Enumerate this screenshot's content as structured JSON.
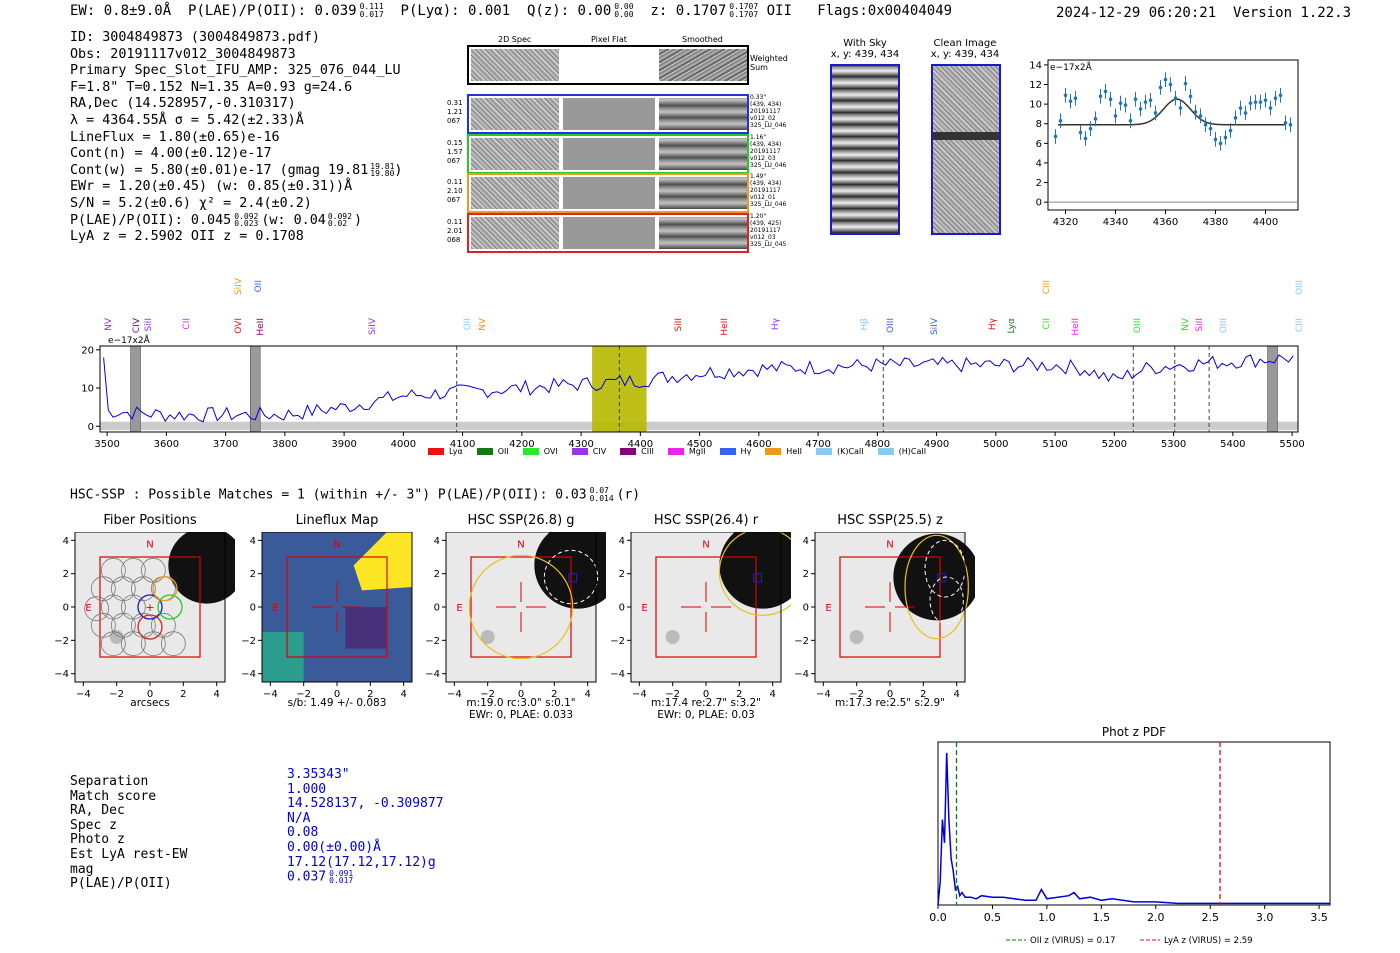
{
  "header": {
    "ew": "EW: 0.8±9.0Å",
    "plae": "P(LAE)/P(OII): 0.039",
    "plae_hi": "0.111",
    "plae_lo": "0.017",
    "plya": "P(Lyα): 0.001",
    "qz": "Q(z): 0.00",
    "qz_hi": "0.00",
    "qz_lo": "0.00",
    "z": "z: 0.1707",
    "z_hi": "0.1707",
    "z_lo": "0.1707",
    "z_line": "OII",
    "flags": "Flags:0x00404049",
    "timestamp": "2024-12-29 06:20:21",
    "version": "Version 1.22.3"
  },
  "info": {
    "id": "ID: 3004849873 (3004849873.pdf)",
    "obs": "Obs: 20191117v012_3004849873",
    "primary": "Primary Spec_Slot_IFU_AMP: 325_076_044_LU",
    "f_line": "F=1.8\"  T=0.152  N=1.35  A=0.93  g=24.6",
    "radec": "RA,Dec (14.528957,-0.310317)",
    "lambda": "λ = 4364.55Å   σ = 5.42(±2.33)Å",
    "lineflux": "LineFlux = 1.80(±0.65)e-16",
    "contn": "Cont(n) = 4.00(±0.12)e-17",
    "contw": "Cont(w) = 5.80(±0.01)e-17 (gmag 19.81",
    "contw_hi": "19.81",
    "contw_lo": "19.80",
    "contw_close": ")",
    "ewr": "EWr = 1.20(±0.45)  (w: 0.85(±0.31))Å",
    "sn": "S/N = 5.2(±0.6)  χ² = 2.4(±0.2)",
    "plae2": "P(LAE)/P(OII): 0.045",
    "plae2_hi": "0.092",
    "plae2_lo": "0.023",
    "plae2_w": "(w: 0.04",
    "plae2_w_hi": "0.092",
    "plae2_w_lo": "0.02",
    "plae2_close": ")",
    "lyaz": "LyA z = 2.5902  OII z = 0.1708"
  },
  "cutouts": {
    "col_2dspec": "2D Spec",
    "col_pixflat": "Pixel Flat",
    "col_smoothed": "Smoothed",
    "weighted_sum": "Weighted Sum",
    "rows": [
      {
        "left": [
          "0.31",
          "1.21",
          "067"
        ],
        "right": [
          "0.33\"",
          "(439, 434)",
          "20191117",
          "v012_02",
          "325_LU_046"
        ],
        "color": "#2233dd"
      },
      {
        "left": [
          "0.15",
          "1.57",
          "067"
        ],
        "right": [
          "1.16\"",
          "(439, 434)",
          "20191117",
          "v012_03",
          "325_LU_046"
        ],
        "color": "#22cc22"
      },
      {
        "left": [
          "0.11",
          "2.10",
          "067"
        ],
        "right": [
          "1.49\"",
          "(439, 434)",
          "20191117",
          "v012_01",
          "325_LU_046"
        ],
        "color": "#ee9922"
      },
      {
        "left": [
          "0.11",
          "2.01",
          "068"
        ],
        "right": [
          "1.20\"",
          "(439, 425)",
          "20191117",
          "v012_03",
          "325_LU_045"
        ],
        "color": "#dd2222"
      }
    ]
  },
  "stamps": {
    "with_sky": "With Sky",
    "with_sky_xy": "x, y: 439, 434",
    "clean": "Clean Image",
    "clean_xy": "x, y: 439, 434"
  },
  "line_ids": [
    "NV",
    "CIV",
    "SiII",
    "CII",
    "OVI",
    "HeII",
    "SiIV",
    "OII",
    "NV",
    "SiII",
    "HeII",
    "Hγ",
    "Hβ",
    "OIII",
    "SiIV",
    "Hγ",
    "Lyα",
    "CII",
    "HeII",
    "OIII",
    "NV",
    "SiII",
    "OIII",
    "CIII"
  ],
  "legend_items": [
    {
      "name": "Lyα",
      "color": "#ee1111"
    },
    {
      "name": "OII",
      "color": "#117711"
    },
    {
      "name": "OVI",
      "color": "#22ee22"
    },
    {
      "name": "CIV",
      "color": "#9933ee"
    },
    {
      "name": "CIII",
      "color": "#880077"
    },
    {
      "name": "MgII",
      "color": "#ee22ee"
    },
    {
      "name": "Hγ",
      "color": "#3366ee"
    },
    {
      "name": "HeII",
      "color": "#ee9911"
    },
    {
      "name": "(K)CaII",
      "color": "#88ccee"
    },
    {
      "name": "(H)CaII",
      "color": "#88ccee"
    }
  ],
  "hsc": {
    "title": "HSC-SSP : Possible Matches = 1 (within +/- 3\")  P(LAE)/P(OII): 0.03",
    "hi": "0.07",
    "lo": "0.014",
    "suffix": "(r)",
    "panels": [
      {
        "title": "Fiber Positions",
        "caption1": "arcsecs",
        "caption2": ""
      },
      {
        "title": "Lineflux Map",
        "caption1": "s/b: 1.49 +/- 0.083",
        "caption2": ""
      },
      {
        "title": "HSC SSP(26.8) g",
        "caption1": "m:19.0 rc:3.0\"  s:0.1\"",
        "caption2": "EWr: 0, PLAE: 0.033"
      },
      {
        "title": "HSC SSP(26.4) r",
        "caption1": "m:17.4  re:2.7\"  s:3.2\"",
        "caption2": "EWr: 0, PLAE: 0.03"
      },
      {
        "title": "HSC SSP(25.5) z",
        "caption1": "m:17.3  re:2.5\"  s:2.9\"",
        "caption2": ""
      }
    ],
    "axis_ticks": [
      "−4",
      "−2",
      "0",
      "2",
      "4"
    ],
    "compass_n": "N",
    "compass_e": "E"
  },
  "match": {
    "labels": [
      "Separation",
      "Match score",
      "RA, Dec",
      "Spec z",
      "Photo z",
      "Est LyA rest-EW",
      "mag",
      "P(LAE)/P(OII)"
    ],
    "values": [
      "3.35343\"",
      "1.000",
      "14.528137, -0.309877",
      "N/A",
      "0.08",
      "0.00(±0.00)Å",
      "17.12(17.12,17.12)g",
      "0.037"
    ],
    "plae_hi": "0.091",
    "plae_lo": "0.017"
  },
  "chart_data": [
    {
      "type": "line",
      "title": "",
      "ylabel_unit": "e−17x2Å",
      "x": [
        4316,
        4318,
        4320,
        4322,
        4324,
        4326,
        4328,
        4330,
        4332,
        4334,
        4336,
        4338,
        4340,
        4342,
        4344,
        4346,
        4348,
        4350,
        4352,
        4354,
        4356,
        4358,
        4360,
        4362,
        4364,
        4366,
        4368,
        4370,
        4372,
        4374,
        4376,
        4378,
        4380,
        4382,
        4384,
        4386,
        4388,
        4390,
        4392,
        4394,
        4396,
        4398,
        4400,
        4402,
        4404,
        4406,
        4408,
        4410
      ],
      "y": [
        6.7,
        8.3,
        10.9,
        10.3,
        10.6,
        7.1,
        6.5,
        7.5,
        8.5,
        10.8,
        11.3,
        10.5,
        8.8,
        10.1,
        9.9,
        8.3,
        10.5,
        9.5,
        10.2,
        10.4,
        9.1,
        11.7,
        12.5,
        12.0,
        10.6,
        9.6,
        12.1,
        10.8,
        9.2,
        8.8,
        7.9,
        7.5,
        6.4,
        6.0,
        6.6,
        7.3,
        8.6,
        9.6,
        9.1,
        10.1,
        10.2,
        10.2,
        10.4,
        9.6,
        10.6,
        10.9,
        8.1,
        7.9
      ],
      "model_baseline": 7.9,
      "model_peak": 10.5,
      "model_center": 4364.55,
      "model_sigma": 5.42,
      "xlim": [
        4313,
        4413
      ],
      "ylim": [
        -0.8,
        14.5
      ],
      "xticks": [
        4320,
        4340,
        4360,
        4380,
        4400
      ],
      "yticks": [
        0,
        2,
        4,
        6,
        8,
        10,
        12,
        14
      ]
    },
    {
      "type": "line",
      "title": "",
      "ylabel_unit": "e−17x2Å",
      "x_start": 3494,
      "x_end": 5508,
      "x_step": 8,
      "trend": [
        [
          3500,
          4
        ],
        [
          3600,
          3
        ],
        [
          3700,
          3
        ],
        [
          3800,
          3
        ],
        [
          3900,
          5
        ],
        [
          4000,
          8
        ],
        [
          4100,
          9
        ],
        [
          4200,
          10
        ],
        [
          4300,
          11
        ],
        [
          4400,
          12
        ],
        [
          4500,
          14
        ],
        [
          4600,
          15
        ],
        [
          4700,
          15.5
        ],
        [
          4800,
          16
        ],
        [
          4900,
          16
        ],
        [
          5000,
          16
        ],
        [
          5100,
          16
        ],
        [
          5150,
          15
        ],
        [
          5200,
          12
        ],
        [
          5250,
          15
        ],
        [
          5300,
          16
        ],
        [
          5400,
          17
        ],
        [
          5508,
          18
        ]
      ],
      "highlight_center": 4364.55,
      "highlight_width": 92,
      "gray_bands": [
        3548,
        3750,
        5467
      ],
      "dashed_lines": [
        4090,
        4364.55,
        4810,
        5232,
        5302,
        5360
      ],
      "xlim": [
        3488,
        5510
      ],
      "ylim": [
        -1.5,
        21
      ],
      "xticks": [
        3500,
        3600,
        3700,
        3800,
        3900,
        4000,
        4100,
        4200,
        4300,
        4400,
        4500,
        4600,
        4700,
        4800,
        4900,
        5000,
        5100,
        5200,
        5300,
        5400,
        5500
      ],
      "yticks": [
        0,
        10,
        20
      ]
    },
    {
      "type": "line",
      "title": "Phot z PDF",
      "x": [
        0.0,
        0.02,
        0.04,
        0.06,
        0.08,
        0.1,
        0.12,
        0.14,
        0.16,
        0.18,
        0.2,
        0.22,
        0.25,
        0.3,
        0.35,
        0.4,
        0.5,
        0.6,
        0.7,
        0.8,
        0.9,
        0.95,
        1.0,
        1.1,
        1.2,
        1.25,
        1.3,
        1.4,
        1.5,
        1.6,
        1.8,
        2.0,
        2.2,
        2.5,
        3.0,
        3.5,
        3.6
      ],
      "y": [
        0.0,
        0.15,
        0.55,
        0.4,
        0.98,
        0.55,
        0.3,
        0.22,
        0.1,
        0.12,
        0.06,
        0.08,
        0.05,
        0.05,
        0.04,
        0.06,
        0.05,
        0.05,
        0.04,
        0.03,
        0.03,
        0.1,
        0.04,
        0.05,
        0.06,
        0.08,
        0.04,
        0.05,
        0.03,
        0.04,
        0.02,
        0.02,
        0.01,
        0.01,
        0.01,
        0.01,
        0.01
      ],
      "oii_z": 0.17,
      "lya_z": 2.59,
      "legend_oii": "OII z (VIRUS) = 0.17",
      "legend_lya": "LyA z (VIRUS) = 2.59",
      "xlim": [
        0.0,
        3.6
      ],
      "ylim": [
        0,
        1.05
      ],
      "xticks": [
        0.0,
        0.5,
        1.0,
        1.5,
        2.0,
        2.5,
        3.0,
        3.5
      ],
      "xticklabels": [
        "0.0",
        "0.5",
        "1.0",
        "1.5",
        "2.0",
        "2.5",
        "3.0",
        "3.5"
      ]
    }
  ]
}
